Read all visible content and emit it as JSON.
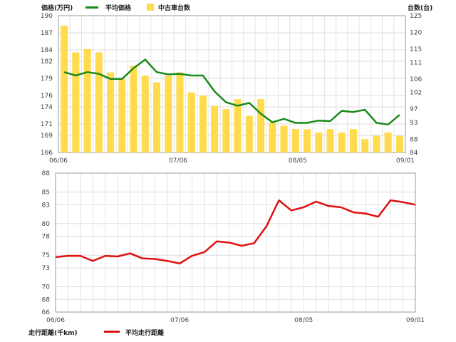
{
  "chart_data": [
    {
      "type": "bar+line",
      "left_axis_label": "価格(万円)",
      "right_axis_label": "台数(台)",
      "legend": {
        "line_name": "平均価格",
        "bar_name": "中古車台数"
      },
      "x_tick_labels": [
        "06/06",
        "07/06",
        "08/05",
        "09/01"
      ],
      "x_tick_indices": [
        0,
        10,
        20,
        29
      ],
      "left_ylim": [
        166,
        190
      ],
      "left_ticks": [
        166,
        169,
        171,
        174,
        176,
        179,
        182,
        184,
        187,
        190
      ],
      "right_ylim": [
        84,
        125
      ],
      "right_ticks": [
        84,
        88,
        93,
        97,
        102,
        106,
        111,
        115,
        120,
        125
      ],
      "grid": true,
      "series": [
        {
          "name": "平均価格",
          "kind": "line",
          "axis": "left",
          "color": "#1a8a1a",
          "values": [
            180.1,
            179.5,
            180.1,
            179.8,
            178.9,
            178.9,
            180.8,
            182.3,
            180.1,
            179.7,
            179.8,
            179.5,
            179.5,
            176.7,
            174.8,
            174.2,
            174.7,
            172.8,
            171.3,
            171.9,
            171.2,
            171.2,
            171.6,
            171.5,
            173.3,
            173.1,
            173.5,
            171.2,
            170.9,
            172.6
          ]
        },
        {
          "name": "中古車台数",
          "kind": "bar",
          "axis": "right",
          "color": "#ffdb4d",
          "values": [
            122,
            114,
            115,
            114,
            108,
            106,
            110,
            107,
            105,
            107,
            108,
            102,
            101,
            98,
            97,
            100,
            95,
            100,
            93,
            92,
            91,
            91,
            90,
            91,
            90,
            91,
            88,
            89,
            90,
            89
          ]
        }
      ]
    },
    {
      "type": "line",
      "ylabel": "走行距離(千km)",
      "legend": {
        "line_name": "平均走行距離"
      },
      "x_tick_labels": [
        "06/06",
        "07/06",
        "08/05",
        "09/01"
      ],
      "x_tick_indices": [
        0,
        10,
        20,
        29
      ],
      "ylim": [
        66,
        88
      ],
      "yticks": [
        66,
        68,
        70,
        73,
        75,
        78,
        80,
        83,
        85,
        88
      ],
      "grid": true,
      "series": [
        {
          "name": "平均走行距離",
          "color": "#e01010",
          "values": [
            74.7,
            74.9,
            74.9,
            74.1,
            74.9,
            74.8,
            75.3,
            74.5,
            74.4,
            74.1,
            73.7,
            74.9,
            75.5,
            77.2,
            77.0,
            76.5,
            76.9,
            79.6,
            83.7,
            82.1,
            82.6,
            83.5,
            82.8,
            82.6,
            81.8,
            81.6,
            81.1,
            83.7,
            83.4,
            83.0
          ]
        }
      ]
    }
  ]
}
